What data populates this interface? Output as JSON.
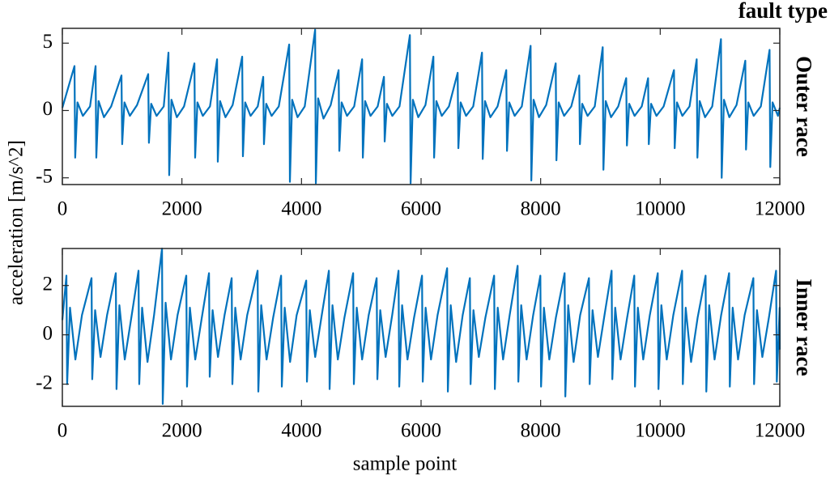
{
  "chart_data": [
    {
      "type": "line",
      "title": "Outer race",
      "annotation": "fault type",
      "ylabel": "acceleration [m/s^2]",
      "color": "#0072bd",
      "xlim": [
        0,
        12000
      ],
      "xticks": [
        0,
        2000,
        4000,
        6000,
        8000,
        10000,
        12000
      ],
      "ylim": [
        -5.5,
        6.1
      ],
      "yticks": [
        -5,
        0,
        5
      ],
      "x": [
        0,
        203,
        215,
        253,
        343,
        463,
        556,
        568,
        606,
        696,
        816,
        989,
        1001,
        1039,
        1129,
        1249,
        1436,
        1448,
        1486,
        1576,
        1696,
        1775,
        1787,
        1825,
        1915,
        2035,
        2209,
        2221,
        2259,
        2349,
        2469,
        2588,
        2600,
        2638,
        2728,
        2848,
        3008,
        3020,
        3058,
        3148,
        3268,
        3360,
        3372,
        3410,
        3500,
        3620,
        3794,
        3806,
        3844,
        3934,
        4054,
        4228,
        4240,
        4278,
        4368,
        4488,
        4621,
        4633,
        4671,
        4761,
        4881,
        5014,
        5026,
        5064,
        5154,
        5274,
        5379,
        5391,
        5429,
        5519,
        5639,
        5813,
        5825,
        5863,
        5953,
        6073,
        6206,
        6218,
        6256,
        6346,
        6466,
        6612,
        6624,
        6662,
        6752,
        6872,
        7019,
        7031,
        7069,
        7159,
        7279,
        7425,
        7437,
        7475,
        7565,
        7685,
        7832,
        7844,
        7882,
        7972,
        8092,
        8252,
        8264,
        8302,
        8392,
        8512,
        8645,
        8657,
        8695,
        8785,
        8905,
        9038,
        9050,
        9088,
        9178,
        9298,
        9431,
        9443,
        9481,
        9571,
        9691,
        9797,
        9809,
        9847,
        9937,
        10057,
        10230,
        10242,
        10280,
        10370,
        10490,
        10610,
        10622,
        10660,
        10750,
        10870,
        11016,
        11028,
        11066,
        11156,
        11276,
        11423,
        11435,
        11473,
        11563,
        11683,
        11829,
        11841,
        11879,
        11969,
        12000
      ],
      "values": [
        0.2,
        3.3,
        -3.5,
        0.6,
        -0.4,
        0.3,
        3.3,
        -3.5,
        0.7,
        -0.5,
        0.3,
        2.6,
        -2.5,
        0.6,
        -0.4,
        0.4,
        2.7,
        -2.4,
        0.5,
        -0.4,
        0.3,
        4.3,
        -4.8,
        0.8,
        -0.5,
        0.3,
        3.5,
        -3.5,
        0.6,
        -0.4,
        0.3,
        3.8,
        -3.8,
        0.7,
        -0.5,
        0.4,
        4.0,
        -3.4,
        0.6,
        -0.4,
        0.3,
        2.5,
        -2.5,
        0.5,
        -0.4,
        0.3,
        4.9,
        -5.3,
        0.8,
        -0.5,
        0.3,
        6.0,
        -5.4,
        0.9,
        -0.6,
        0.4,
        3.0,
        -3.0,
        0.6,
        -0.4,
        0.3,
        3.8,
        -3.5,
        0.7,
        -0.4,
        0.3,
        2.5,
        -2.3,
        0.5,
        -0.4,
        0.3,
        5.6,
        -5.4,
        0.8,
        -0.5,
        0.4,
        4.0,
        -3.5,
        0.7,
        -0.4,
        0.3,
        2.8,
        -2.8,
        0.6,
        -0.4,
        0.3,
        4.3,
        -3.6,
        0.7,
        -0.5,
        0.3,
        3.0,
        -3.0,
        0.6,
        -0.4,
        0.3,
        4.8,
        -5.2,
        0.8,
        -0.5,
        0.4,
        3.5,
        -3.7,
        0.6,
        -0.4,
        0.3,
        2.6,
        -2.5,
        0.5,
        -0.4,
        0.3,
        4.7,
        -4.4,
        0.7,
        -0.5,
        0.3,
        2.4,
        -2.6,
        0.5,
        -0.4,
        0.3,
        2.4,
        -2.5,
        0.5,
        -0.4,
        0.3,
        3.0,
        -2.8,
        0.6,
        -0.4,
        0.3,
        3.8,
        -3.5,
        0.7,
        -0.5,
        0.3,
        5.3,
        -5.0,
        0.8,
        -0.5,
        0.4,
        3.7,
        -2.9,
        0.6,
        -0.4,
        0.3,
        4.5,
        -4.2,
        0.6,
        -0.4,
        0.2
      ]
    },
    {
      "type": "line",
      "title": "Inner race",
      "xlabel": "sample point",
      "color": "#0072bd",
      "xlim": [
        0,
        12000
      ],
      "xticks": [
        0,
        2000,
        4000,
        6000,
        8000,
        10000,
        12000
      ],
      "ylim": [
        -2.9,
        3.5
      ],
      "yticks": [
        -2,
        0,
        2
      ],
      "x": [
        0,
        68,
        80,
        128,
        218,
        328,
        488,
        500,
        548,
        638,
        748,
        894,
        906,
        954,
        1044,
        1154,
        1274,
        1286,
        1334,
        1424,
        1534,
        1667,
        1679,
        1727,
        1817,
        1927,
        2073,
        2085,
        2133,
        2223,
        2333,
        2453,
        2465,
        2513,
        2603,
        2713,
        2832,
        2844,
        2892,
        2982,
        3092,
        3266,
        3278,
        3326,
        3416,
        3526,
        3659,
        3671,
        3719,
        3809,
        3919,
        4079,
        4091,
        4139,
        4229,
        4339,
        4458,
        4470,
        4518,
        4608,
        4718,
        4864,
        4876,
        4924,
        5014,
        5124,
        5257,
        5269,
        5317,
        5407,
        5517,
        5623,
        5635,
        5683,
        5773,
        5883,
        6016,
        6028,
        6076,
        6166,
        6276,
        6436,
        6448,
        6496,
        6586,
        6696,
        6816,
        6828,
        6876,
        6966,
        7076,
        7222,
        7234,
        7282,
        7372,
        7482,
        7615,
        7627,
        7675,
        7765,
        7875,
        7995,
        8007,
        8055,
        8145,
        8255,
        8401,
        8413,
        8461,
        8551,
        8661,
        8808,
        8820,
        8868,
        8958,
        9068,
        9187,
        9199,
        9247,
        9337,
        9447,
        9566,
        9578,
        9626,
        9716,
        9826,
        9959,
        9971,
        10019,
        10109,
        10219,
        10366,
        10378,
        10426,
        10516,
        10626,
        10759,
        10771,
        10819,
        10909,
        11019,
        11152,
        11164,
        11212,
        11302,
        11412,
        11558,
        11570,
        11618,
        11708,
        11818,
        11938,
        11950,
        11998,
        12000
      ],
      "values": [
        0.6,
        2.4,
        -2.0,
        1.1,
        -1.0,
        0.8,
        2.3,
        -1.8,
        1.0,
        -0.9,
        0.8,
        2.5,
        -2.2,
        1.2,
        -1.0,
        0.7,
        2.6,
        -2.0,
        1.1,
        -1.1,
        0.8,
        3.5,
        -2.8,
        1.3,
        -1.0,
        0.8,
        2.4,
        -2.1,
        1.1,
        -1.0,
        0.7,
        2.5,
        -1.7,
        1.0,
        -0.9,
        0.8,
        2.3,
        -2.0,
        1.1,
        -1.0,
        0.8,
        2.6,
        -2.3,
        1.2,
        -1.0,
        0.7,
        2.4,
        -2.1,
        1.1,
        -1.1,
        0.8,
        2.2,
        -1.9,
        1.0,
        -0.9,
        0.8,
        2.6,
        -2.2,
        1.2,
        -1.0,
        0.7,
        2.5,
        -2.0,
        1.1,
        -1.0,
        0.8,
        2.3,
        -1.8,
        1.0,
        -0.9,
        0.8,
        2.6,
        -2.1,
        1.2,
        -1.0,
        0.7,
        2.4,
        -1.9,
        1.1,
        -1.0,
        0.8,
        2.7,
        -2.3,
        1.2,
        -1.1,
        0.8,
        2.3,
        -2.0,
        1.0,
        -0.9,
        0.7,
        2.4,
        -2.2,
        1.1,
        -1.0,
        0.8,
        2.8,
        -1.9,
        1.2,
        -1.0,
        0.8,
        2.4,
        -2.1,
        1.1,
        -1.0,
        0.7,
        2.5,
        -2.5,
        1.2,
        -1.1,
        0.8,
        2.3,
        -2.0,
        1.0,
        -0.9,
        0.8,
        2.6,
        -1.8,
        1.1,
        -1.0,
        0.7,
        2.4,
        -2.1,
        1.1,
        -1.0,
        0.8,
        2.5,
        -2.2,
        1.2,
        -1.0,
        0.8,
        2.6,
        -2.0,
        1.1,
        -1.1,
        0.7,
        2.4,
        -2.3,
        1.2,
        -1.0,
        0.8,
        2.5,
        -2.1,
        1.1,
        -1.0,
        0.8,
        2.3,
        -2.0,
        1.0,
        -0.9,
        0.7,
        2.6,
        -1.9,
        1.1,
        -0.6
      ]
    }
  ]
}
